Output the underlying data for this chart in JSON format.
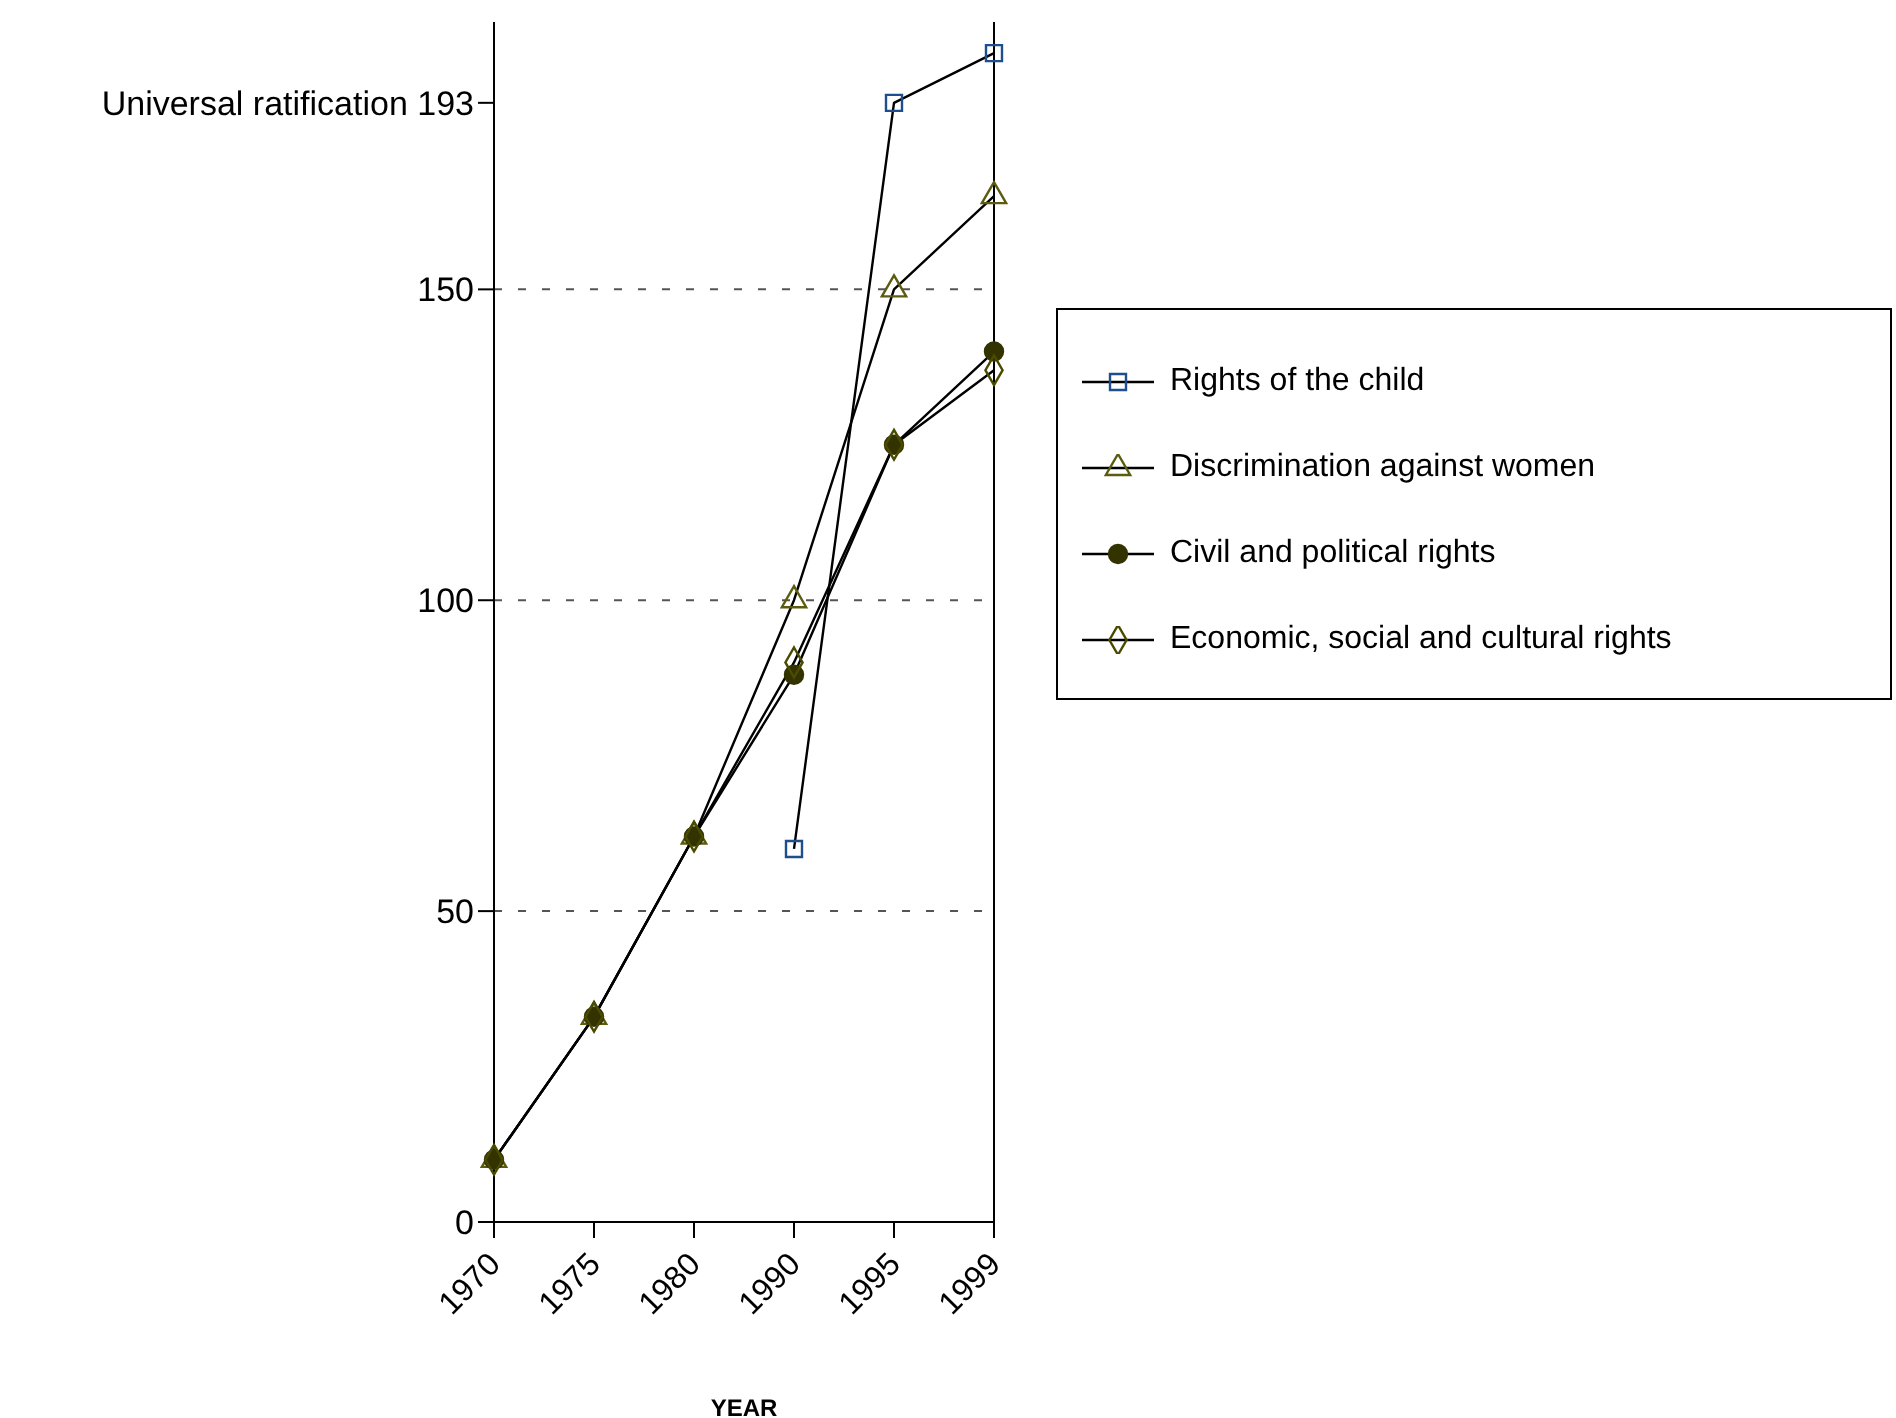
{
  "chart_data": {
    "type": "line",
    "xlabel": "YEAR",
    "categories": [
      "1970",
      "1975",
      "1980",
      "1990",
      "1995",
      "1999"
    ],
    "series": [
      {
        "name": "Rights of the child",
        "color": "#1f4e8c",
        "marker": "square",
        "values": [
          null,
          null,
          null,
          60,
          180,
          188
        ]
      },
      {
        "name": "Discrimination against women",
        "color": "#5c5c10",
        "marker": "triangle",
        "values": [
          10,
          33,
          62,
          100,
          150,
          165
        ]
      },
      {
        "name": "Civil and political rights",
        "color": "#333300",
        "marker": "circle",
        "values": [
          10,
          33,
          62,
          88,
          125,
          140
        ]
      },
      {
        "name": "Economic, social and cultural rights",
        "color": "#4a4a00",
        "marker": "diamond",
        "values": [
          10,
          33,
          62,
          90,
          125,
          137
        ]
      }
    ],
    "ylim": [
      0,
      193
    ],
    "yticks": [
      0,
      50,
      100,
      150,
      {
        "value": 180,
        "label": "Universal ratification  193"
      }
    ],
    "grid": "y",
    "legend": "right",
    "line_style": "solid"
  }
}
